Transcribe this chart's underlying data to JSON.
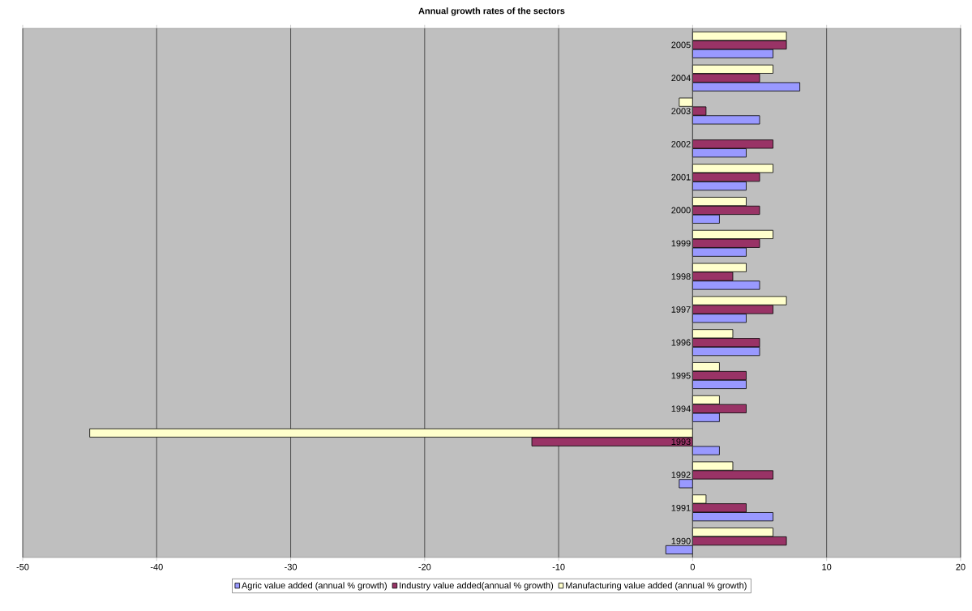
{
  "chart_data": {
    "type": "bar",
    "orientation": "horizontal",
    "title": "Annual growth rates of the sectors",
    "categories": [
      "2005",
      "2004",
      "2003",
      "2002",
      "2001",
      "2000",
      "1999",
      "1998",
      "1997",
      "1996",
      "1995",
      "1994",
      "1993",
      "1992",
      "1991",
      "1990"
    ],
    "series": [
      {
        "name": "Agric value added (annual  % growth)",
        "color": "#9999ff",
        "values": [
          6,
          8,
          5,
          4,
          4,
          2,
          4,
          5,
          4,
          5,
          4,
          2,
          2,
          -1,
          6,
          -2
        ]
      },
      {
        "name": "Industry value added(annual % growth)",
        "color": "#993366",
        "values": [
          7,
          5,
          1,
          6,
          5,
          5,
          5,
          3,
          6,
          5,
          4,
          4,
          -12,
          6,
          4,
          7
        ]
      },
      {
        "name": "Manufacturing value added (annual % growth)",
        "color": "#ffffcc",
        "values": [
          7,
          6,
          -1,
          null,
          6,
          4,
          6,
          4,
          7,
          3,
          2,
          2,
          -45,
          3,
          1,
          6
        ]
      }
    ],
    "xlim": [
      -50,
      20
    ],
    "xticks": [
      -50,
      -40,
      -30,
      -20,
      -10,
      0,
      10,
      20
    ],
    "grid": "x",
    "legend": "bottom"
  }
}
